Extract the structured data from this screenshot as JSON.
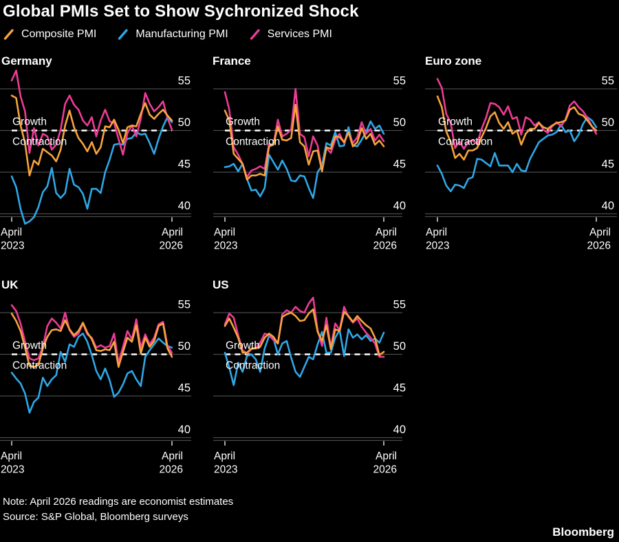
{
  "title": "Global PMIs Set to Show Sychronized Shock",
  "legend": [
    {
      "id": "composite",
      "label": "Composite PMI"
    },
    {
      "id": "manufacturing",
      "label": "Manufacturing PMI"
    },
    {
      "id": "services",
      "label": "Services PMI"
    }
  ],
  "colors": {
    "background": "#000000",
    "composite": "#F7A43C",
    "manufacturing": "#2FA8E8",
    "services": "#EE3C96",
    "grid": "#4A4A4A",
    "threshold": "#FFFFFF",
    "tick_mark": "#CFCFCF",
    "text": "#FFFFFF"
  },
  "axis": {
    "y_ticks": [
      55,
      50,
      45,
      40
    ],
    "threshold": 50,
    "growth_label": "Growth",
    "contraction_label": "Contraction",
    "x_start_lines": [
      "April",
      "2023"
    ],
    "x_end_lines": [
      "April",
      "2026"
    ]
  },
  "footer": {
    "note": "Note: April 2026 readings are economist estimates",
    "source": "Source: S&P Global, Bloomberg surveys",
    "brand": "Bloomberg"
  },
  "chart_data": [
    {
      "type": "line",
      "title": "Germany",
      "x_start": "April 2023",
      "x_end": "April 2026",
      "frequency": "monthly",
      "n_points": 37,
      "y_ticks": [
        55,
        50,
        45,
        40
      ],
      "threshold": 50,
      "series": [
        {
          "id": "composite",
          "name": "Composite PMI",
          "values": [
            54.2,
            53.9,
            50.6,
            48.5,
            44.6,
            46.4,
            45.9,
            47.8,
            47.4,
            47.0,
            46.3,
            47.7,
            50.6,
            52.4,
            50.4,
            49.1,
            48.4,
            47.5,
            48.6,
            47.2,
            48.0,
            50.5,
            50.4,
            51.3,
            50.1,
            48.5,
            50.4,
            50.6,
            50.5,
            52.0,
            53.3,
            51.9,
            51.4,
            52.0,
            52.5,
            51.8,
            51.2
          ]
        },
        {
          "id": "manufacturing",
          "name": "Manufacturing PMI",
          "values": [
            44.5,
            43.2,
            40.6,
            38.8,
            39.1,
            39.6,
            40.8,
            42.6,
            43.3,
            45.5,
            42.5,
            41.9,
            42.5,
            45.4,
            43.5,
            43.2,
            42.4,
            40.6,
            43.0,
            43.0,
            42.5,
            45.0,
            46.5,
            48.3,
            48.4,
            48.3,
            49.0,
            49.1,
            49.8,
            49.5,
            49.6,
            48.5,
            47.2,
            49.0,
            50.5,
            51.6,
            51.0
          ]
        },
        {
          "id": "services",
          "name": "Services PMI",
          "values": [
            56.0,
            57.2,
            54.1,
            52.3,
            47.3,
            50.3,
            48.2,
            49.6,
            49.3,
            47.7,
            48.3,
            50.1,
            53.2,
            54.2,
            53.1,
            52.5,
            51.2,
            50.6,
            51.6,
            49.3,
            51.2,
            52.5,
            51.1,
            50.9,
            49.0,
            47.1,
            49.7,
            50.6,
            49.3,
            51.4,
            54.5,
            53.2,
            52.3,
            52.8,
            53.5,
            51.5,
            50.1
          ]
        }
      ]
    },
    {
      "type": "line",
      "title": "France",
      "x_start": "April 2023",
      "x_end": "April 2026",
      "frequency": "monthly",
      "n_points": 37,
      "y_ticks": [
        55,
        50,
        45,
        40
      ],
      "threshold": 50,
      "series": [
        {
          "id": "composite",
          "name": "Composite PMI",
          "values": [
            52.4,
            51.2,
            47.2,
            46.6,
            46.0,
            44.1,
            44.6,
            44.6,
            44.8,
            44.6,
            48.1,
            48.3,
            50.5,
            48.9,
            48.8,
            49.1,
            53.1,
            48.6,
            48.1,
            45.9,
            47.5,
            47.6,
            45.1,
            48.0,
            47.8,
            49.3,
            49.2,
            48.6,
            49.8,
            48.1,
            48.6,
            50.3,
            49.0,
            49.6,
            48.3,
            48.8,
            48.1
          ]
        },
        {
          "id": "manufacturing",
          "name": "Manufacturing PMI",
          "values": [
            45.6,
            45.7,
            46.0,
            45.1,
            46.0,
            44.2,
            42.8,
            42.9,
            42.1,
            43.1,
            47.1,
            46.2,
            45.3,
            46.4,
            45.4,
            44.0,
            43.9,
            44.6,
            44.5,
            43.1,
            41.9,
            45.0,
            45.8,
            48.5,
            48.2,
            49.8,
            48.1,
            48.2,
            50.4,
            48.2,
            48.1,
            48.9,
            49.8,
            51.1,
            50.2,
            50.6,
            49.6
          ]
        },
        {
          "id": "services",
          "name": "Services PMI",
          "values": [
            54.6,
            52.5,
            48.0,
            47.1,
            46.0,
            44.4,
            45.2,
            45.4,
            45.7,
            45.4,
            48.4,
            48.3,
            51.3,
            49.3,
            49.6,
            50.1,
            55.0,
            49.6,
            49.2,
            46.9,
            49.3,
            48.2,
            45.3,
            47.9,
            47.3,
            48.9,
            49.6,
            48.5,
            49.8,
            48.5,
            49.2,
            51.0,
            49.6,
            50.2,
            48.8,
            49.5,
            48.7
          ]
        }
      ]
    },
    {
      "type": "line",
      "title": "Euro zone",
      "x_start": "April 2023",
      "x_end": "April 2026",
      "frequency": "monthly",
      "n_points": 37,
      "y_ticks": [
        55,
        50,
        45,
        40
      ],
      "threshold": 50,
      "series": [
        {
          "id": "composite",
          "name": "Composite PMI",
          "values": [
            54.1,
            52.8,
            49.9,
            48.6,
            46.7,
            47.2,
            46.5,
            47.6,
            47.6,
            47.9,
            49.2,
            50.3,
            51.7,
            52.2,
            50.9,
            50.2,
            51.0,
            49.6,
            50.0,
            48.3,
            49.6,
            50.2,
            50.2,
            50.9,
            50.4,
            50.2,
            50.6,
            50.9,
            51.0,
            51.2,
            52.5,
            52.8,
            52.0,
            51.8,
            51.2,
            50.5,
            50.0
          ]
        },
        {
          "id": "manufacturing",
          "name": "Manufacturing PMI",
          "values": [
            45.8,
            44.8,
            43.4,
            42.7,
            43.5,
            43.4,
            43.1,
            44.2,
            44.4,
            46.6,
            46.5,
            46.1,
            45.7,
            47.3,
            45.8,
            45.8,
            45.8,
            45.0,
            46.0,
            45.2,
            45.1,
            46.6,
            47.6,
            48.6,
            49.0,
            49.4,
            49.5,
            49.8,
            50.7,
            49.8,
            50.0,
            48.7,
            49.5,
            50.8,
            51.6,
            51.2,
            50.4
          ]
        },
        {
          "id": "services",
          "name": "Services PMI",
          "values": [
            56.2,
            55.1,
            52.0,
            50.9,
            47.9,
            48.7,
            47.8,
            48.7,
            48.8,
            48.4,
            50.2,
            51.5,
            53.3,
            53.2,
            52.8,
            51.9,
            52.9,
            51.4,
            51.6,
            49.5,
            51.6,
            51.3,
            50.6,
            51.0,
            50.1,
            49.7,
            50.5,
            51.0,
            50.5,
            51.3,
            53.0,
            53.5,
            52.8,
            52.3,
            51.5,
            50.5,
            49.6
          ]
        }
      ]
    },
    {
      "type": "line",
      "title": "UK",
      "x_start": "April 2023",
      "x_end": "April 2026",
      "frequency": "monthly",
      "n_points": 37,
      "y_ticks": [
        55,
        50,
        45,
        40
      ],
      "threshold": 50,
      "series": [
        {
          "id": "composite",
          "name": "Composite PMI",
          "values": [
            54.9,
            54.0,
            52.8,
            50.8,
            48.6,
            48.5,
            48.7,
            50.7,
            52.1,
            52.9,
            53.0,
            52.8,
            54.1,
            53.0,
            52.3,
            52.8,
            53.8,
            52.6,
            51.8,
            50.5,
            50.4,
            50.6,
            50.5,
            51.5,
            48.5,
            50.3,
            52.0,
            51.5,
            53.5,
            50.1,
            52.0,
            50.9,
            51.6,
            53.4,
            53.7,
            50.7,
            49.7
          ]
        },
        {
          "id": "manufacturing",
          "name": "Manufacturing PMI",
          "values": [
            47.8,
            47.1,
            46.5,
            45.3,
            43.0,
            44.3,
            44.8,
            47.2,
            46.2,
            47.0,
            47.5,
            50.3,
            49.1,
            51.2,
            50.9,
            52.1,
            52.5,
            51.5,
            49.9,
            48.0,
            47.0,
            48.3,
            46.9,
            44.9,
            45.4,
            46.4,
            47.7,
            48.0,
            47.0,
            46.2,
            49.7,
            50.5,
            51.2,
            51.9,
            51.4,
            51.0,
            50.8
          ]
        },
        {
          "id": "services",
          "name": "Services PMI",
          "values": [
            55.9,
            55.2,
            53.7,
            51.5,
            49.5,
            49.3,
            49.5,
            50.9,
            53.4,
            54.3,
            53.8,
            53.1,
            55.0,
            52.9,
            52.1,
            52.5,
            53.7,
            52.4,
            52.0,
            50.8,
            51.1,
            50.8,
            51.0,
            52.5,
            49.0,
            50.9,
            52.8,
            51.8,
            54.2,
            50.8,
            52.4,
            51.2,
            52.0,
            53.6,
            53.9,
            51.0,
            50.2
          ]
        }
      ]
    },
    {
      "type": "line",
      "title": "US",
      "x_start": "April 2023",
      "x_end": "April 2026",
      "frequency": "monthly",
      "n_points": 37,
      "y_ticks": [
        55,
        50,
        45,
        40
      ],
      "threshold": 50,
      "series": [
        {
          "id": "composite",
          "name": "Composite PMI",
          "values": [
            53.4,
            54.3,
            53.2,
            52.0,
            50.2,
            50.2,
            50.7,
            50.7,
            50.9,
            52.0,
            52.5,
            52.1,
            51.3,
            54.5,
            54.8,
            55.0,
            54.6,
            54.0,
            54.1,
            54.9,
            55.4,
            52.7,
            51.6,
            53.5,
            50.6,
            53.0,
            52.8,
            55.1,
            54.6,
            53.9,
            54.6,
            54.0,
            53.5,
            53.1,
            52.0,
            49.9,
            50.3
          ]
        },
        {
          "id": "manufacturing",
          "name": "Manufacturing PMI",
          "values": [
            50.2,
            48.4,
            46.3,
            49.0,
            47.9,
            49.8,
            50.0,
            49.4,
            47.9,
            50.7,
            52.2,
            51.9,
            50.0,
            51.3,
            51.6,
            49.6,
            47.9,
            47.3,
            48.5,
            49.7,
            49.4,
            51.2,
            52.7,
            50.2,
            50.2,
            52.0,
            52.9,
            49.8,
            53.0,
            52.0,
            52.4,
            51.8,
            52.3,
            51.6,
            51.9,
            51.4,
            52.6
          ]
        },
        {
          "id": "services",
          "name": "Services PMI",
          "values": [
            53.6,
            54.9,
            54.4,
            52.3,
            50.5,
            50.1,
            50.6,
            50.8,
            51.4,
            52.5,
            52.3,
            51.7,
            51.3,
            54.8,
            55.3,
            55.0,
            55.7,
            55.2,
            55.0,
            56.1,
            56.8,
            52.9,
            51.0,
            54.4,
            50.8,
            53.7,
            52.9,
            55.7,
            54.5,
            53.8,
            54.3,
            53.3,
            52.6,
            52.0,
            51.3,
            49.7,
            49.7
          ]
        }
      ]
    }
  ]
}
